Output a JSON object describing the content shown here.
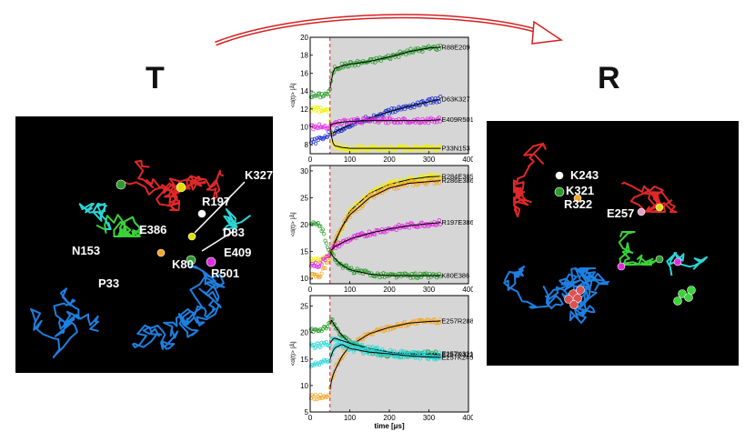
{
  "left_state": "T",
  "right_state": "R",
  "left_labels": [
    {
      "text": "K327",
      "x": 252,
      "y": 57
    },
    {
      "text": "R197",
      "x": 205,
      "y": 86
    },
    {
      "text": "E386",
      "x": 136,
      "y": 117
    },
    {
      "text": "D83",
      "x": 228,
      "y": 120
    },
    {
      "text": "N153",
      "x": 62,
      "y": 140
    },
    {
      "text": "K80",
      "x": 172,
      "y": 155
    },
    {
      "text": "E409",
      "x": 229,
      "y": 142
    },
    {
      "text": "R501",
      "x": 215,
      "y": 165
    },
    {
      "text": "P33",
      "x": 91,
      "y": 176
    }
  ],
  "right_labels": [
    {
      "text": "K243",
      "x": 92,
      "y": 52
    },
    {
      "text": "K321",
      "x": 87,
      "y": 69
    },
    {
      "text": "R322",
      "x": 85,
      "y": 84
    },
    {
      "text": "E257",
      "x": 132,
      "y": 94
    }
  ],
  "colors": {
    "green": "#2e9b2e",
    "blue": "#1f2fcf",
    "magenta": "#e02ce0",
    "yellow": "#f2f200",
    "orange": "#f5a623",
    "cyan": "#2bd6d6",
    "fit": "#000000",
    "dashed": "#e02020",
    "plot_bg": "#d6d6d6"
  },
  "chart_data": [
    {
      "type": "scatter",
      "ylabel": "<d(t)> [Å]",
      "xlim": [
        0,
        400
      ],
      "ylim": [
        7,
        20
      ],
      "yticks": [
        8,
        10,
        12,
        14,
        16,
        18,
        20
      ],
      "xticks": [
        0,
        100,
        200,
        300,
        400
      ],
      "marker_time": 50,
      "series": [
        {
          "name": "R88E209",
          "color": "green",
          "x": [
            0,
            25,
            48,
            55,
            60,
            80,
            100,
            150,
            200,
            250,
            300,
            330
          ],
          "y": [
            13.5,
            13.5,
            13.8,
            15.5,
            16.5,
            16.8,
            17.0,
            17.3,
            17.8,
            18.4,
            18.8,
            18.9
          ]
        },
        {
          "name": "D63K327",
          "color": "blue",
          "x": [
            0,
            25,
            50,
            75,
            100,
            150,
            200,
            250,
            300,
            330
          ],
          "y": [
            8.2,
            8.6,
            9.2,
            9.7,
            10.2,
            11.0,
            11.7,
            12.3,
            12.8,
            13.1
          ]
        },
        {
          "name": "E409R501",
          "color": "magenta",
          "x": [
            0,
            25,
            50,
            55,
            75,
            100,
            150,
            200,
            250,
            300,
            330
          ],
          "y": [
            10.0,
            10.0,
            10.1,
            10.3,
            10.5,
            10.6,
            10.7,
            10.7,
            10.7,
            10.7,
            10.8
          ]
        },
        {
          "name": "P33N153",
          "color": "yellow",
          "x": [
            0,
            25,
            48,
            52,
            56,
            62,
            80,
            100,
            150,
            200,
            250,
            300,
            330
          ],
          "y": [
            12.0,
            11.9,
            11.7,
            9.5,
            8.3,
            7.9,
            7.7,
            7.6,
            7.6,
            7.6,
            7.6,
            7.6,
            7.6
          ]
        }
      ]
    },
    {
      "type": "scatter",
      "ylabel": "<d(t)> [Å]",
      "xlim": [
        0,
        400
      ],
      "ylim": [
        9,
        31
      ],
      "yticks": [
        10,
        15,
        20,
        25,
        30
      ],
      "xticks": [
        0,
        100,
        200,
        300,
        400
      ],
      "marker_time": 50,
      "series": [
        {
          "name": "R284E385",
          "color": "yellow",
          "x": [
            0,
            25,
            50,
            60,
            80,
            100,
            150,
            200,
            250,
            300,
            330
          ],
          "y": [
            13.5,
            13.5,
            14.0,
            16.0,
            19.5,
            22.5,
            25.8,
            27.5,
            28.4,
            28.9,
            29.0
          ]
        },
        {
          "name": "R286E386",
          "color": "orange",
          "x": [
            0,
            25,
            50,
            60,
            80,
            100,
            150,
            200,
            250,
            300,
            330
          ],
          "y": [
            10.5,
            10.5,
            14.0,
            16.5,
            19.5,
            21.8,
            25.0,
            26.8,
            27.7,
            28.0,
            28.2
          ]
        },
        {
          "name": "R197E386",
          "color": "magenta",
          "x": [
            0,
            25,
            50,
            60,
            80,
            100,
            150,
            200,
            250,
            300,
            330
          ],
          "y": [
            12.5,
            12.5,
            15.0,
            15.8,
            16.6,
            17.3,
            18.4,
            19.2,
            19.8,
            20.2,
            20.4
          ]
        },
        {
          "name": "K80E386",
          "color": "green",
          "x": [
            0,
            25,
            50,
            60,
            80,
            100,
            150,
            200,
            250,
            300,
            330
          ],
          "y": [
            20.0,
            20.0,
            15.0,
            13.8,
            12.5,
            11.6,
            10.8,
            10.5,
            10.5,
            10.5,
            10.5
          ]
        }
      ]
    },
    {
      "type": "scatter",
      "ylabel": "<d(t)> [Å]",
      "xlabel": "time [μs]",
      "xlim": [
        0,
        400
      ],
      "ylim": [
        5,
        27
      ],
      "yticks": [
        5,
        10,
        15,
        20,
        25
      ],
      "xticks": [
        0,
        100,
        200,
        300,
        400
      ],
      "marker_time": 50,
      "series": [
        {
          "name": "E257R288",
          "color": "orange",
          "x": [
            0,
            25,
            48,
            52,
            60,
            80,
            100,
            150,
            200,
            250,
            300,
            330
          ],
          "y": [
            7.8,
            7.8,
            8.0,
            10.5,
            12.5,
            15.5,
            17.5,
            19.8,
            21.0,
            21.8,
            22.1,
            22.2
          ]
        },
        {
          "name": "E257K321",
          "color": "green",
          "x": [
            0,
            25,
            50,
            55,
            60,
            80,
            100,
            150,
            200,
            250,
            300,
            330
          ],
          "y": [
            20.5,
            20.5,
            21.5,
            22.5,
            21.5,
            19.5,
            18.0,
            16.5,
            15.8,
            15.8,
            16.0,
            16.0
          ]
        },
        {
          "name": "E257R322",
          "color": "cyan",
          "x": [
            0,
            25,
            50,
            60,
            80,
            100,
            150,
            200,
            250,
            300,
            330
          ],
          "y": [
            17.5,
            17.5,
            18.0,
            19.0,
            18.5,
            18.0,
            17.0,
            16.3,
            16.0,
            15.9,
            15.8
          ]
        },
        {
          "name": "E257K245",
          "color": "cyan",
          "x": [
            0,
            25,
            50,
            60,
            80,
            100,
            150,
            200,
            250,
            300,
            330
          ],
          "y": [
            14.0,
            14.0,
            15.0,
            17.0,
            17.8,
            17.0,
            16.3,
            16.0,
            15.6,
            15.4,
            15.3
          ]
        }
      ]
    }
  ]
}
